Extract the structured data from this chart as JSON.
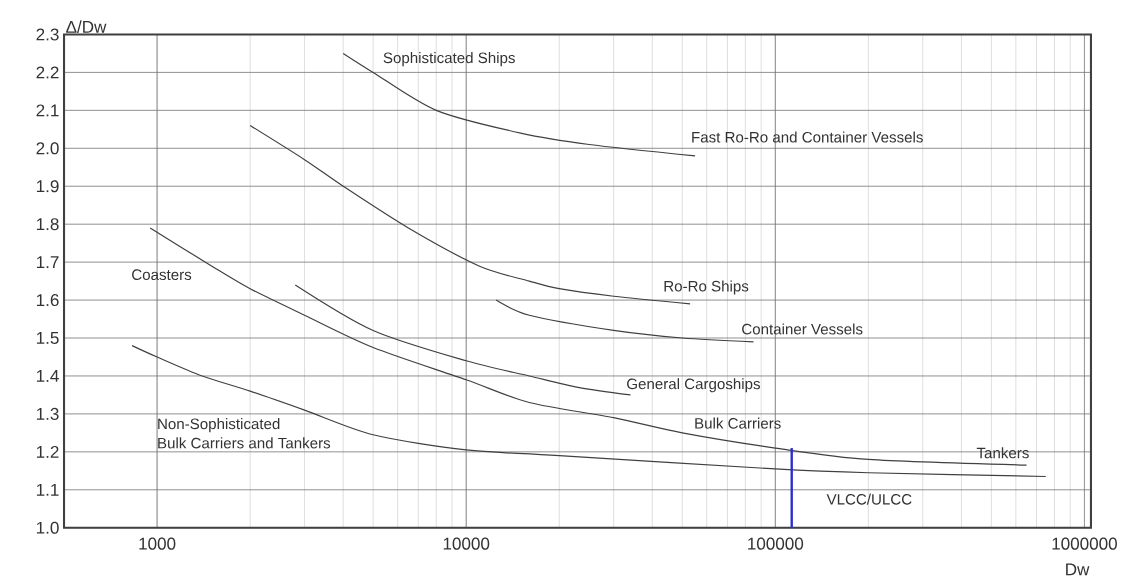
{
  "chart_data": {
    "type": "line",
    "xlabel": "Dw",
    "ylabel": "Δ/Dw",
    "log": "x",
    "grid": true,
    "marker": "none",
    "xlim": [
      500,
      1050000
    ],
    "ylim": [
      1.0,
      2.3
    ],
    "xticks": [
      1000,
      10000,
      100000,
      1000000
    ],
    "yticks": [
      {
        "value": 1.0,
        "label": "1.0"
      },
      {
        "value": 1.1,
        "label": "1.1"
      },
      {
        "value": 1.2,
        "label": "1.2"
      },
      {
        "value": 1.3,
        "label": "1.3"
      },
      {
        "value": 1.4,
        "label": "1.4"
      },
      {
        "value": 1.5,
        "label": "1.5"
      },
      {
        "value": 1.6,
        "label": "1.6"
      },
      {
        "value": 1.7,
        "label": "1.7"
      },
      {
        "value": 1.8,
        "label": "1.8"
      },
      {
        "value": 1.9,
        "label": "1.9"
      },
      {
        "value": 2.0,
        "label": "2.0"
      },
      {
        "value": 2.1,
        "label": "2.1"
      },
      {
        "value": 2.2,
        "label": "2.2"
      },
      {
        "value": 2.3,
        "label": "2.3"
      }
    ],
    "series": [
      {
        "color": "#404040",
        "x": [
          4000,
          5000,
          8000,
          15000,
          25000,
          55000
        ],
        "values": [
          2.25,
          2.2,
          2.1,
          2.04,
          2.01,
          1.98
        ]
      },
      {
        "color": "#404040",
        "x": [
          2000,
          3000,
          4000,
          6500,
          11000,
          16000,
          20000,
          30000,
          53000
        ],
        "values": [
          2.06,
          1.97,
          1.9,
          1.79,
          1.69,
          1.65,
          1.63,
          1.61,
          1.59
        ]
      },
      {
        "color": "#404040",
        "x": [
          12500,
          16000,
          30000,
          50000,
          85000
        ],
        "values": [
          1.6,
          1.56,
          1.52,
          1.5,
          1.49
        ]
      },
      {
        "color": "#404040",
        "x": [
          2800,
          5000,
          10000,
          16000,
          23000,
          34000
        ],
        "values": [
          1.64,
          1.52,
          1.44,
          1.4,
          1.37,
          1.35
        ]
      },
      {
        "color": "#404040",
        "x": [
          950,
          1500,
          2000,
          3000,
          5000,
          10000,
          16000,
          30000,
          50000,
          100000,
          200000,
          650000
        ],
        "values": [
          1.79,
          1.69,
          1.63,
          1.56,
          1.475,
          1.39,
          1.33,
          1.29,
          1.25,
          1.21,
          1.18,
          1.165
        ]
      },
      {
        "color": "#404040",
        "x": [
          830,
          1000,
          1400,
          2000,
          3000,
          5000,
          10000,
          20000,
          100000,
          200000,
          750000
        ],
        "values": [
          1.48,
          1.45,
          1.4,
          1.36,
          1.31,
          1.245,
          1.205,
          1.19,
          1.155,
          1.145,
          1.135
        ]
      },
      {
        "color": "#2b2bd0",
        "x": [
          113000,
          113000
        ],
        "values": [
          1.0,
          1.21
        ]
      }
    ],
    "annotations": [
      "Sophisticated Ships",
      "Fast Ro-Ro and Container Vessels",
      "Ro-Ro Ships",
      "Container Vessels",
      "General Cargoships",
      "Bulk Carriers",
      "Tankers",
      "VLCC/ULCC",
      "Coasters",
      "Non-Sophisticated",
      "Bulk Carriers and Tankers"
    ]
  }
}
